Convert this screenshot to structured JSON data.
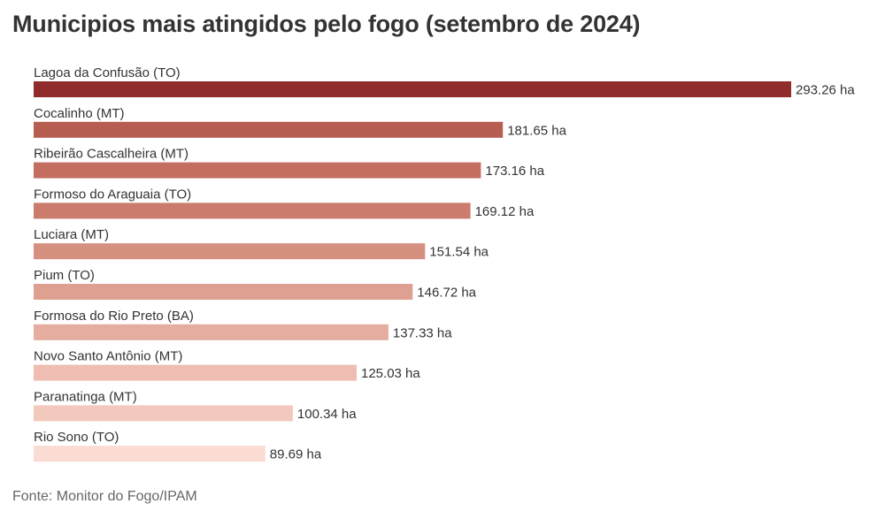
{
  "title": "Municipios mais atingidos pelo fogo (setembro de 2024)",
  "footer": "Fonte: Monitor do Fogo/IPAM",
  "chart_data": {
    "type": "bar",
    "orientation": "horizontal",
    "title": "Municipios mais atingidos pelo fogo (setembro de 2024)",
    "categories": [
      "Lagoa da Confusão (TO)",
      "Cocalinho (MT)",
      "Ribeirão Cascalheira (MT)",
      "Formoso do Araguaia (TO)",
      "Luciara (MT)",
      "Pium (TO)",
      "Formosa do Rio Preto (BA)",
      "Novo Santo Antônio (MT)",
      "Paranatinga (MT)",
      "Rio Sono (TO)"
    ],
    "values": [
      293.26,
      181.65,
      173.16,
      169.12,
      151.54,
      146.72,
      137.33,
      125.03,
      100.34,
      89.69
    ],
    "value_labels": [
      "293.26 ha",
      "181.65 ha",
      "173.16 ha",
      "169.12 ha",
      "151.54 ha",
      "146.72 ha",
      "137.33 ha",
      "125.03 ha",
      "100.34 ha",
      "89.69 ha"
    ],
    "colors": [
      "#902c2c",
      "#b75d52",
      "#c46e60",
      "#cc7c6c",
      "#d59080",
      "#dea091",
      "#e5ad9f",
      "#efbdb1",
      "#f3c9be",
      "#fadcd4"
    ],
    "xlim": [
      0,
      293.26
    ],
    "grid": false,
    "legend": "none"
  }
}
